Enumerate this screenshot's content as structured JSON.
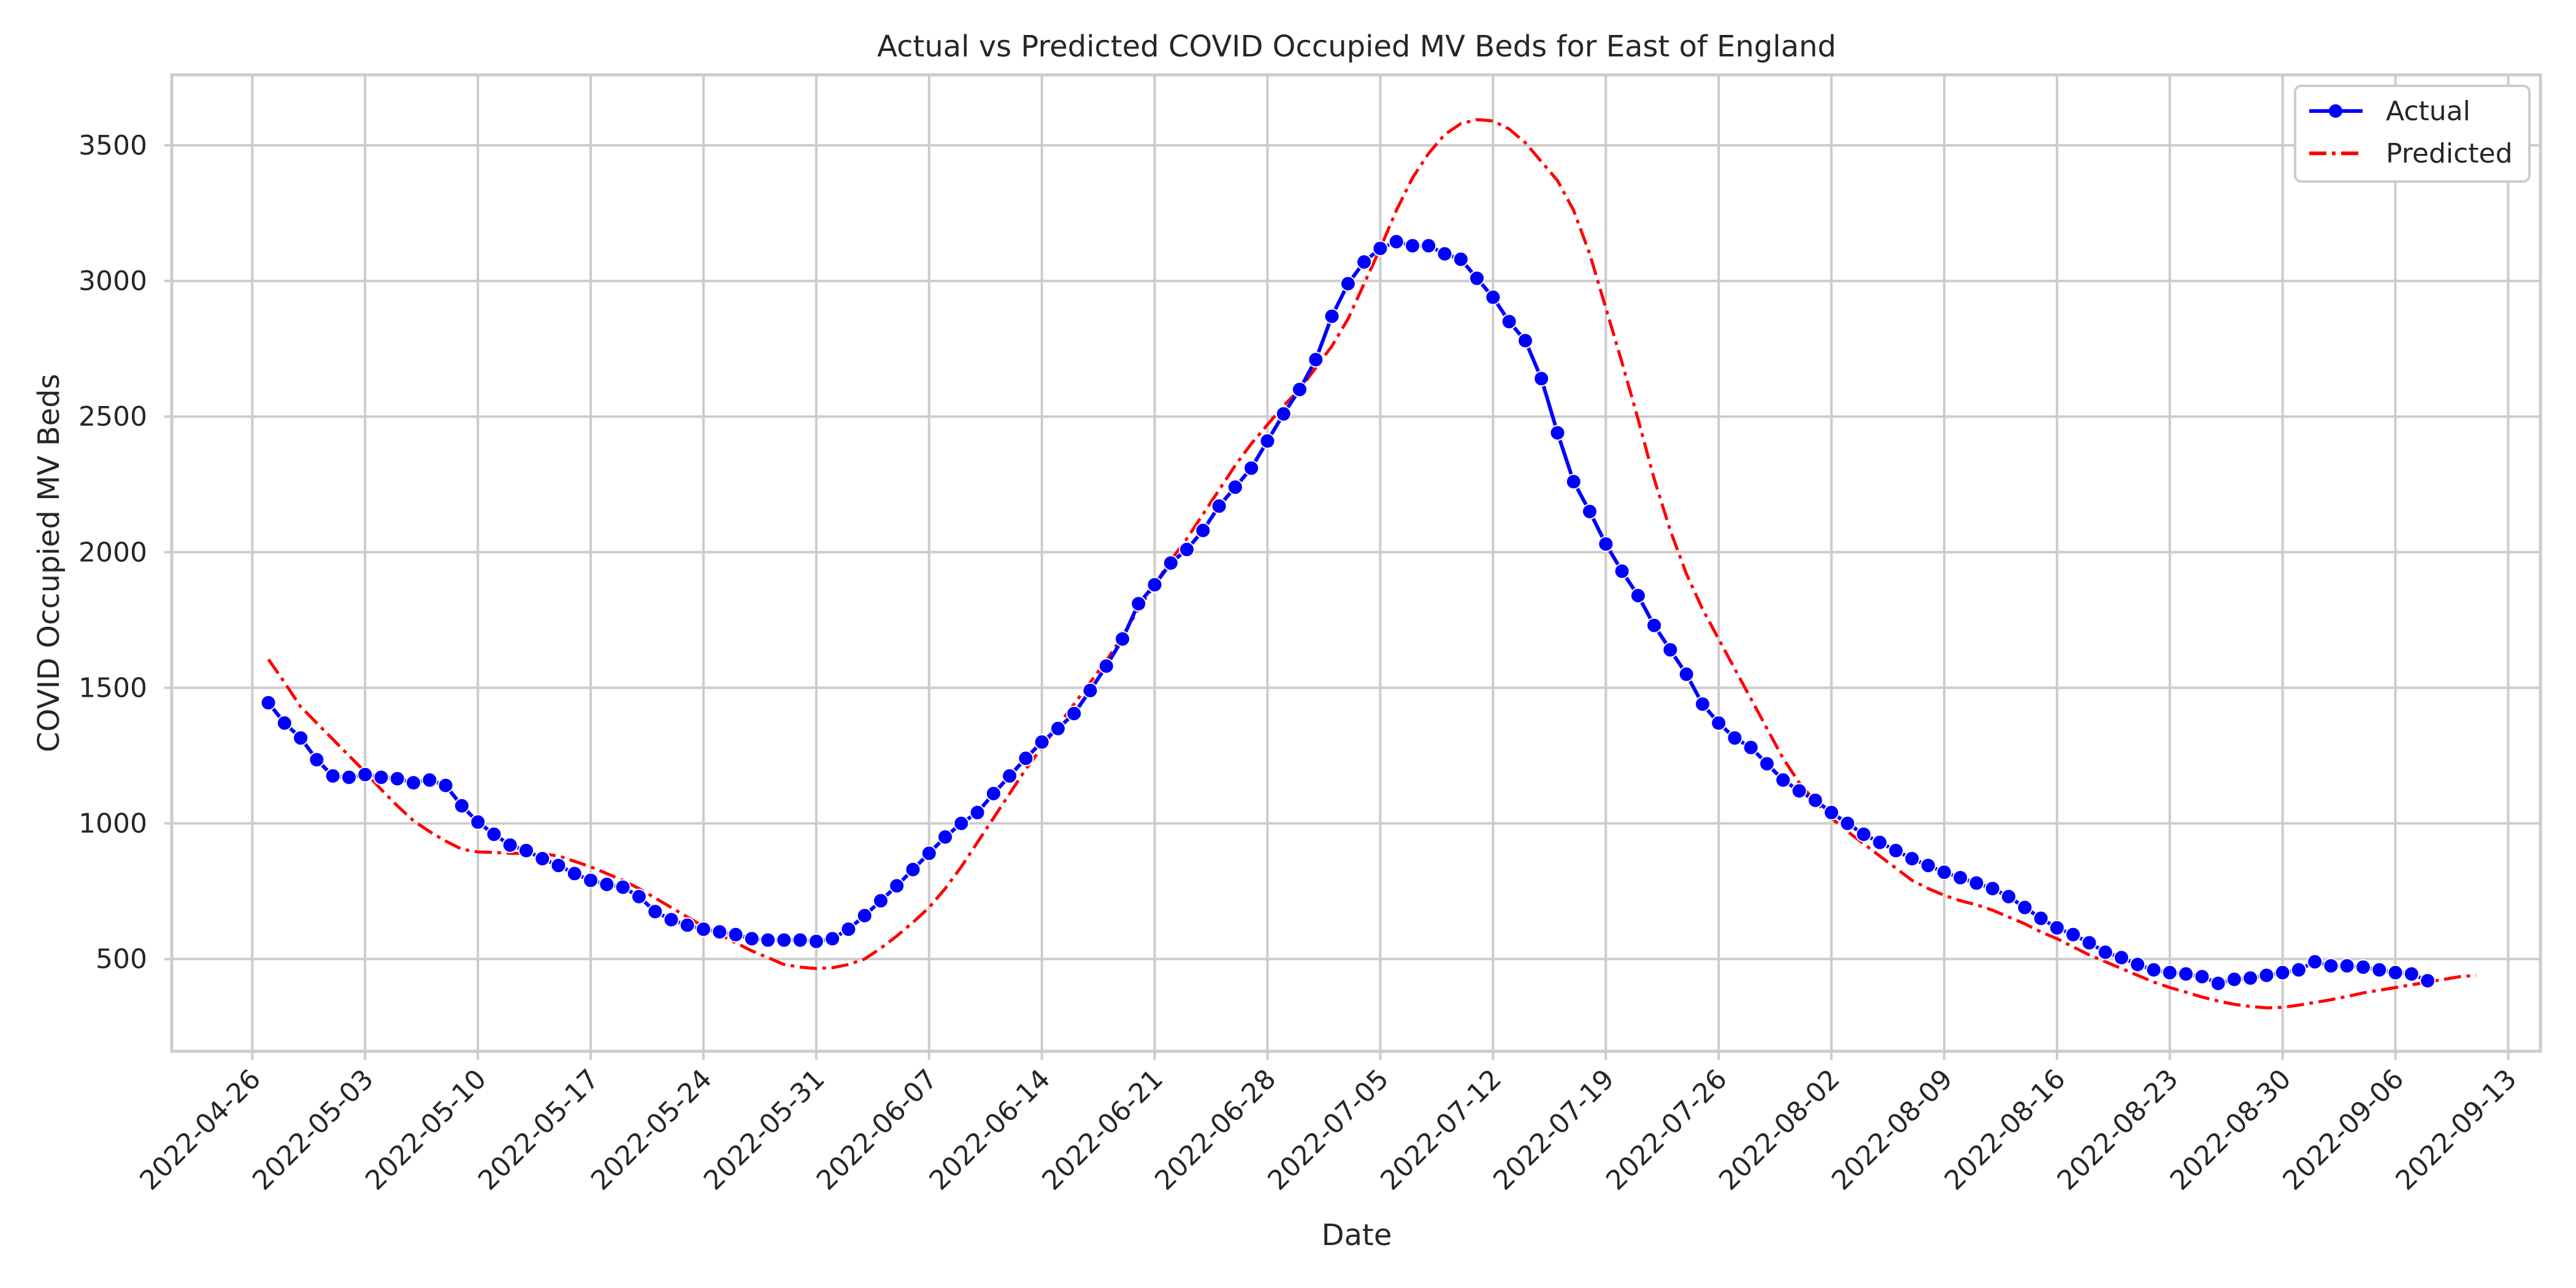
{
  "chart_data": {
    "type": "line",
    "title": "Actual vs Predicted COVID Occupied MV Beds for East of England",
    "xlabel": "Date",
    "ylabel": "COVID Occupied MV Beds",
    "x_start": "2022-04-27",
    "x_ticks": [
      "2022-04-26",
      "2022-05-03",
      "2022-05-10",
      "2022-05-17",
      "2022-05-24",
      "2022-05-31",
      "2022-06-07",
      "2022-06-14",
      "2022-06-21",
      "2022-06-28",
      "2022-07-05",
      "2022-07-12",
      "2022-07-19",
      "2022-07-26",
      "2022-08-02",
      "2022-08-09",
      "2022-08-16",
      "2022-08-23",
      "2022-08-30",
      "2022-09-06",
      "2022-09-13"
    ],
    "y_ticks": [
      500,
      1000,
      1500,
      2000,
      2500,
      3000,
      3500
    ],
    "xlim": [
      "2022-04-21",
      "2022-09-15"
    ],
    "ylim": [
      160,
      3760
    ],
    "grid": true,
    "legend_position": "upper right",
    "series": [
      {
        "name": "Actual",
        "color": "#0000ff",
        "style": "solid-with-circle-markers",
        "values": [
          1445,
          1370,
          1315,
          1235,
          1175,
          1170,
          1180,
          1170,
          1165,
          1150,
          1160,
          1140,
          1065,
          1005,
          960,
          920,
          900,
          870,
          845,
          815,
          790,
          775,
          765,
          730,
          675,
          645,
          625,
          610,
          600,
          590,
          575,
          570,
          570,
          570,
          565,
          575,
          610,
          660,
          715,
          770,
          830,
          890,
          950,
          1000,
          1040,
          1110,
          1175,
          1240,
          1300,
          1350,
          1405,
          1490,
          1580,
          1680,
          1810,
          1880,
          1960,
          2010,
          2080,
          2170,
          2240,
          2310,
          2410,
          2510,
          2600,
          2710,
          2870,
          2990,
          3070,
          3120,
          3145,
          3130,
          3130,
          3100,
          3080,
          3010,
          2940,
          2850,
          2780,
          2640,
          2440,
          2260,
          2150,
          2030,
          1930,
          1840,
          1730,
          1640,
          1550,
          1440,
          1370,
          1315,
          1280,
          1220,
          1160,
          1120,
          1085,
          1040,
          1000,
          960,
          930,
          900,
          870,
          845,
          820,
          800,
          780,
          760,
          730,
          690,
          650,
          615,
          590,
          560,
          525,
          505,
          480,
          460,
          450,
          445,
          435,
          410,
          425,
          430,
          440,
          450,
          460,
          490,
          475,
          475,
          470,
          460,
          450,
          445,
          420
        ]
      },
      {
        "name": "Predicted",
        "color": "#ff0000",
        "style": "dash-dot",
        "values": [
          1605,
          1520,
          1430,
          1370,
          1310,
          1250,
          1190,
          1125,
          1065,
          1010,
          970,
          935,
          905,
          895,
          893,
          890,
          889,
          888,
          880,
          860,
          840,
          815,
          790,
          760,
          725,
          690,
          655,
          620,
          590,
          560,
          530,
          505,
          480,
          470,
          465,
          468,
          480,
          500,
          540,
          585,
          635,
          690,
          760,
          840,
          930,
          1020,
          1110,
          1200,
          1280,
          1360,
          1440,
          1520,
          1600,
          1690,
          1790,
          1880,
          1970,
          2050,
          2140,
          2230,
          2320,
          2400,
          2470,
          2540,
          2600,
          2680,
          2760,
          2860,
          2990,
          3120,
          3260,
          3380,
          3470,
          3540,
          3580,
          3595,
          3590,
          3560,
          3510,
          3440,
          3370,
          3260,
          3100,
          2900,
          2700,
          2490,
          2270,
          2080,
          1920,
          1790,
          1680,
          1570,
          1460,
          1350,
          1240,
          1150,
          1080,
          1020,
          970,
          925,
          880,
          835,
          790,
          760,
          735,
          715,
          700,
          680,
          655,
          630,
          600,
          575,
          545,
          515,
          490,
          465,
          440,
          415,
          395,
          378,
          360,
          345,
          333,
          325,
          320,
          322,
          330,
          340,
          350,
          362,
          375,
          385,
          395,
          405,
          415,
          425,
          435,
          440
        ]
      }
    ]
  }
}
